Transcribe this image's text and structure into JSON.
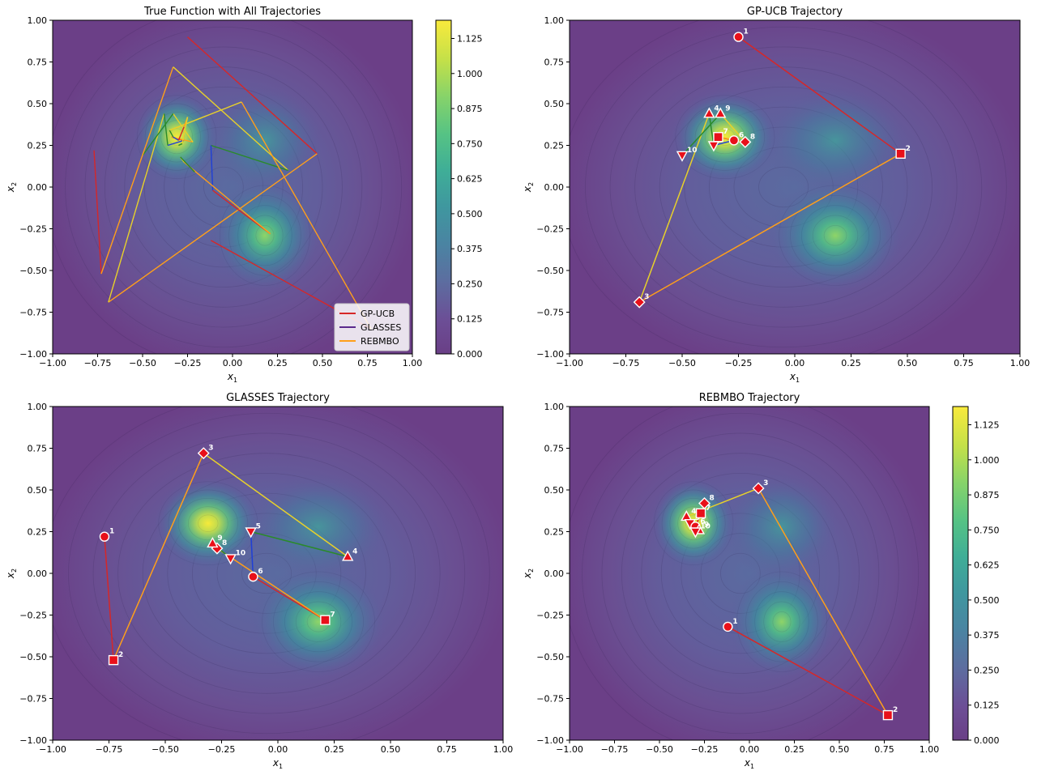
{
  "chart_data": [
    {
      "type": "contour",
      "title": "True Function with All Trajectories",
      "xlabel": "x1",
      "ylabel": "x2",
      "xlim": [
        -1,
        1
      ],
      "ylim": [
        -1,
        1
      ],
      "xticks": [
        "−1.00",
        "−0.75",
        "−0.50",
        "−0.25",
        "0.00",
        "0.25",
        "0.50",
        "0.75",
        "1.00"
      ],
      "yticks": [
        "−1.00",
        "−0.75",
        "−0.50",
        "−0.25",
        "0.00",
        "0.25",
        "0.50",
        "0.75",
        "1.00"
      ],
      "legend": {
        "placement": "lower-right",
        "entries": [
          {
            "name": "GP-UCB",
            "color": "#d62728"
          },
          {
            "name": "GLASSES",
            "color": "#5b2a8c"
          },
          {
            "name": "REBMBO",
            "color": "#ff9f1a"
          }
        ]
      },
      "colorbar": {
        "range": [
          0,
          1.19
        ],
        "ticks": [
          "0.000",
          "0.125",
          "0.250",
          "0.375",
          "0.500",
          "0.625",
          "0.750",
          "0.875",
          "1.000",
          "1.125"
        ]
      },
      "series": [
        {
          "name": "GP-UCB",
          "points": [
            [
              -0.25,
              0.9
            ],
            [
              0.47,
              0.2
            ],
            [
              -0.69,
              -0.69
            ],
            [
              -0.38,
              0.44
            ],
            [
              -0.36,
              0.25
            ],
            [
              -0.27,
              0.28
            ],
            [
              -0.34,
              0.3
            ],
            [
              -0.22,
              0.27
            ],
            [
              -0.33,
              0.44
            ],
            [
              -0.5,
              0.19
            ]
          ]
        },
        {
          "name": "GLASSES",
          "points": [
            [
              -0.77,
              0.22
            ],
            [
              -0.73,
              -0.52
            ],
            [
              -0.33,
              0.72
            ],
            [
              0.31,
              0.1
            ],
            [
              -0.12,
              0.25
            ],
            [
              -0.11,
              -0.02
            ],
            [
              0.21,
              -0.28
            ],
            [
              -0.27,
              0.15
            ],
            [
              -0.29,
              0.18
            ],
            [
              -0.21,
              0.09
            ]
          ]
        },
        {
          "name": "REBMBO",
          "points": [
            [
              -0.12,
              -0.32
            ],
            [
              0.77,
              -0.85
            ],
            [
              0.05,
              0.51
            ],
            [
              -0.35,
              0.34
            ],
            [
              -0.33,
              0.3
            ],
            [
              -0.3,
              0.28
            ],
            [
              -0.27,
              0.36
            ],
            [
              -0.25,
              0.42
            ],
            [
              -0.28,
              0.26
            ],
            [
              -0.3,
              0.25
            ]
          ]
        }
      ]
    },
    {
      "type": "contour",
      "title": "GP-UCB Trajectory",
      "xlabel": "x1",
      "ylabel": "x2",
      "xlim": [
        -1,
        1
      ],
      "ylim": [
        -1,
        1
      ],
      "point_labels": [
        "1",
        "2",
        "3",
        "4",
        "5",
        "6",
        "7",
        "8",
        "9",
        "10"
      ],
      "points": [
        [
          -0.25,
          0.9
        ],
        [
          0.47,
          0.2
        ],
        [
          -0.69,
          -0.69
        ],
        [
          -0.38,
          0.44
        ],
        [
          -0.36,
          0.25
        ],
        [
          -0.27,
          0.28
        ],
        [
          -0.34,
          0.3
        ],
        [
          -0.22,
          0.27
        ],
        [
          -0.33,
          0.44
        ],
        [
          -0.5,
          0.19
        ]
      ]
    },
    {
      "type": "contour",
      "title": "GLASSES Trajectory",
      "xlabel": "x1",
      "ylabel": "x2",
      "xlim": [
        -1,
        1
      ],
      "ylim": [
        -1,
        1
      ],
      "point_labels": [
        "1",
        "2",
        "3",
        "4",
        "5",
        "6",
        "7",
        "8",
        "9",
        "10"
      ],
      "points": [
        [
          -0.77,
          0.22
        ],
        [
          -0.73,
          -0.52
        ],
        [
          -0.33,
          0.72
        ],
        [
          0.31,
          0.1
        ],
        [
          -0.12,
          0.25
        ],
        [
          -0.11,
          -0.02
        ],
        [
          0.21,
          -0.28
        ],
        [
          -0.27,
          0.15
        ],
        [
          -0.29,
          0.18
        ],
        [
          -0.21,
          0.09
        ]
      ]
    },
    {
      "type": "contour",
      "title": "REBMBO Trajectory",
      "xlabel": "x1",
      "ylabel": "x2",
      "xlim": [
        -1,
        1
      ],
      "ylim": [
        -1,
        1
      ],
      "point_labels": [
        "1",
        "2",
        "3",
        "4",
        "5",
        "6",
        "7",
        "8",
        "9",
        "10"
      ],
      "points": [
        [
          -0.12,
          -0.32
        ],
        [
          0.77,
          -0.85
        ],
        [
          0.05,
          0.51
        ],
        [
          -0.35,
          0.34
        ],
        [
          -0.33,
          0.3
        ],
        [
          -0.3,
          0.28
        ],
        [
          -0.27,
          0.36
        ],
        [
          -0.25,
          0.42
        ],
        [
          -0.28,
          0.26
        ],
        [
          -0.3,
          0.25
        ]
      ],
      "colorbar": {
        "range": [
          0,
          1.19
        ],
        "ticks": [
          "0.000",
          "0.125",
          "0.250",
          "0.375",
          "0.500",
          "0.625",
          "0.750",
          "0.875",
          "1.000",
          "1.125"
        ]
      }
    }
  ],
  "colors": {
    "segment_cycle": [
      "#d62728",
      "#ff9f1a",
      "#e8d12a",
      "#2a8a2a",
      "#1f3fd6"
    ],
    "marker_fill": "#e8101a",
    "marker_edge": "#ffffff",
    "viridis": [
      "#440154",
      "#482878",
      "#3e4989",
      "#31688e",
      "#26828e",
      "#1f9e89",
      "#35b779",
      "#6ece58",
      "#b5de2b",
      "#fde725"
    ]
  }
}
